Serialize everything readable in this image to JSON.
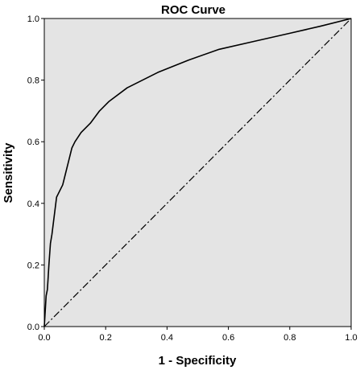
{
  "chart_data": {
    "type": "line",
    "title": "ROC Curve",
    "xlabel": "1 - Specificity",
    "ylabel": "Sensitivity",
    "xlim": [
      0,
      1
    ],
    "ylim": [
      0,
      1
    ],
    "x_ticks": [
      "0.0",
      "0.2",
      "0.4",
      "0.6",
      "0.8",
      "1.0"
    ],
    "y_ticks": [
      "0.0",
      "0.2",
      "0.4",
      "0.6",
      "0.8",
      "1.0"
    ],
    "grid": false,
    "legend": "none",
    "plot_background": "#e4e4e4",
    "series": [
      {
        "style": "solid",
        "x": [
          0.0,
          0.003,
          0.006,
          0.01,
          0.012,
          0.015,
          0.02,
          0.025,
          0.03,
          0.035,
          0.04,
          0.045,
          0.06,
          0.07,
          0.08,
          0.09,
          0.1,
          0.12,
          0.15,
          0.18,
          0.21,
          0.27,
          0.37,
          0.47,
          0.57,
          0.68,
          0.8,
          0.9,
          1.0
        ],
        "y": [
          0.0,
          0.05,
          0.1,
          0.12,
          0.15,
          0.2,
          0.27,
          0.3,
          0.34,
          0.38,
          0.42,
          0.43,
          0.46,
          0.5,
          0.54,
          0.58,
          0.6,
          0.63,
          0.66,
          0.7,
          0.73,
          0.775,
          0.825,
          0.865,
          0.9,
          0.925,
          0.952,
          0.975,
          1.0
        ]
      },
      {
        "style": "dash-dot",
        "x": [
          0,
          1
        ],
        "y": [
          0,
          1
        ]
      }
    ]
  }
}
